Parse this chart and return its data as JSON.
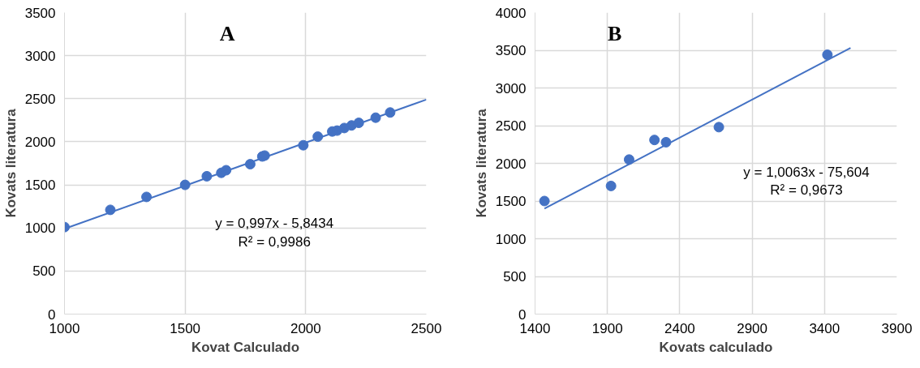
{
  "chart_data": [
    {
      "type": "scatter",
      "xlabel": "Kovat Calculado",
      "ylabel": "Kovats literatura",
      "annotations": [
        "A",
        "y = 0,997x - 5,8434",
        "R² = 0,9986"
      ],
      "xlim": [
        1000,
        2500
      ],
      "xticks": [
        1000,
        1500,
        2000,
        2500
      ],
      "ylim": [
        0,
        3500
      ],
      "yticks": [
        0,
        500,
        1000,
        1500,
        2000,
        2500,
        3000,
        3500
      ],
      "grid": true,
      "series": [
        {
          "marker": "circle",
          "color": "#4472c4",
          "x": [
            1000,
            1190,
            1340,
            1500,
            1590,
            1650,
            1670,
            1770,
            1820,
            1830,
            1990,
            2050,
            2110,
            2130,
            2160,
            2190,
            2220,
            2290,
            2350
          ],
          "values": [
            1010,
            1210,
            1360,
            1500,
            1600,
            1640,
            1670,
            1740,
            1830,
            1840,
            1960,
            2060,
            2120,
            2130,
            2160,
            2190,
            2220,
            2280,
            2340
          ]
        },
        {
          "type": "line",
          "line_style": "solid",
          "color": "#4472c4",
          "x": [
            1000,
            2500
          ],
          "values": [
            990,
            2490
          ]
        }
      ]
    },
    {
      "type": "scatter",
      "xlabel": "Kovats calculado",
      "ylabel": "Kovats literatura",
      "annotations": [
        "B",
        "y = 1,0063x - 75,604",
        "R² = 0,9673"
      ],
      "xlim": [
        1400,
        3900
      ],
      "xticks": [
        1400,
        1900,
        2400,
        2900,
        3400,
        3900
      ],
      "ylim": [
        0,
        4000
      ],
      "yticks": [
        0,
        500,
        1000,
        1500,
        2000,
        2500,
        3000,
        3500,
        4000
      ],
      "grid": true,
      "series": [
        {
          "marker": "circle",
          "color": "#4472c4",
          "x": [
            1465,
            1925,
            2050,
            2225,
            2305,
            2670,
            3420
          ],
          "values": [
            1500,
            1700,
            2050,
            2310,
            2280,
            2480,
            3440
          ]
        },
        {
          "type": "line",
          "line_style": "solid",
          "color": "#4472c4",
          "x": [
            1465,
            3580
          ],
          "values": [
            1400,
            3530
          ]
        }
      ]
    }
  ]
}
